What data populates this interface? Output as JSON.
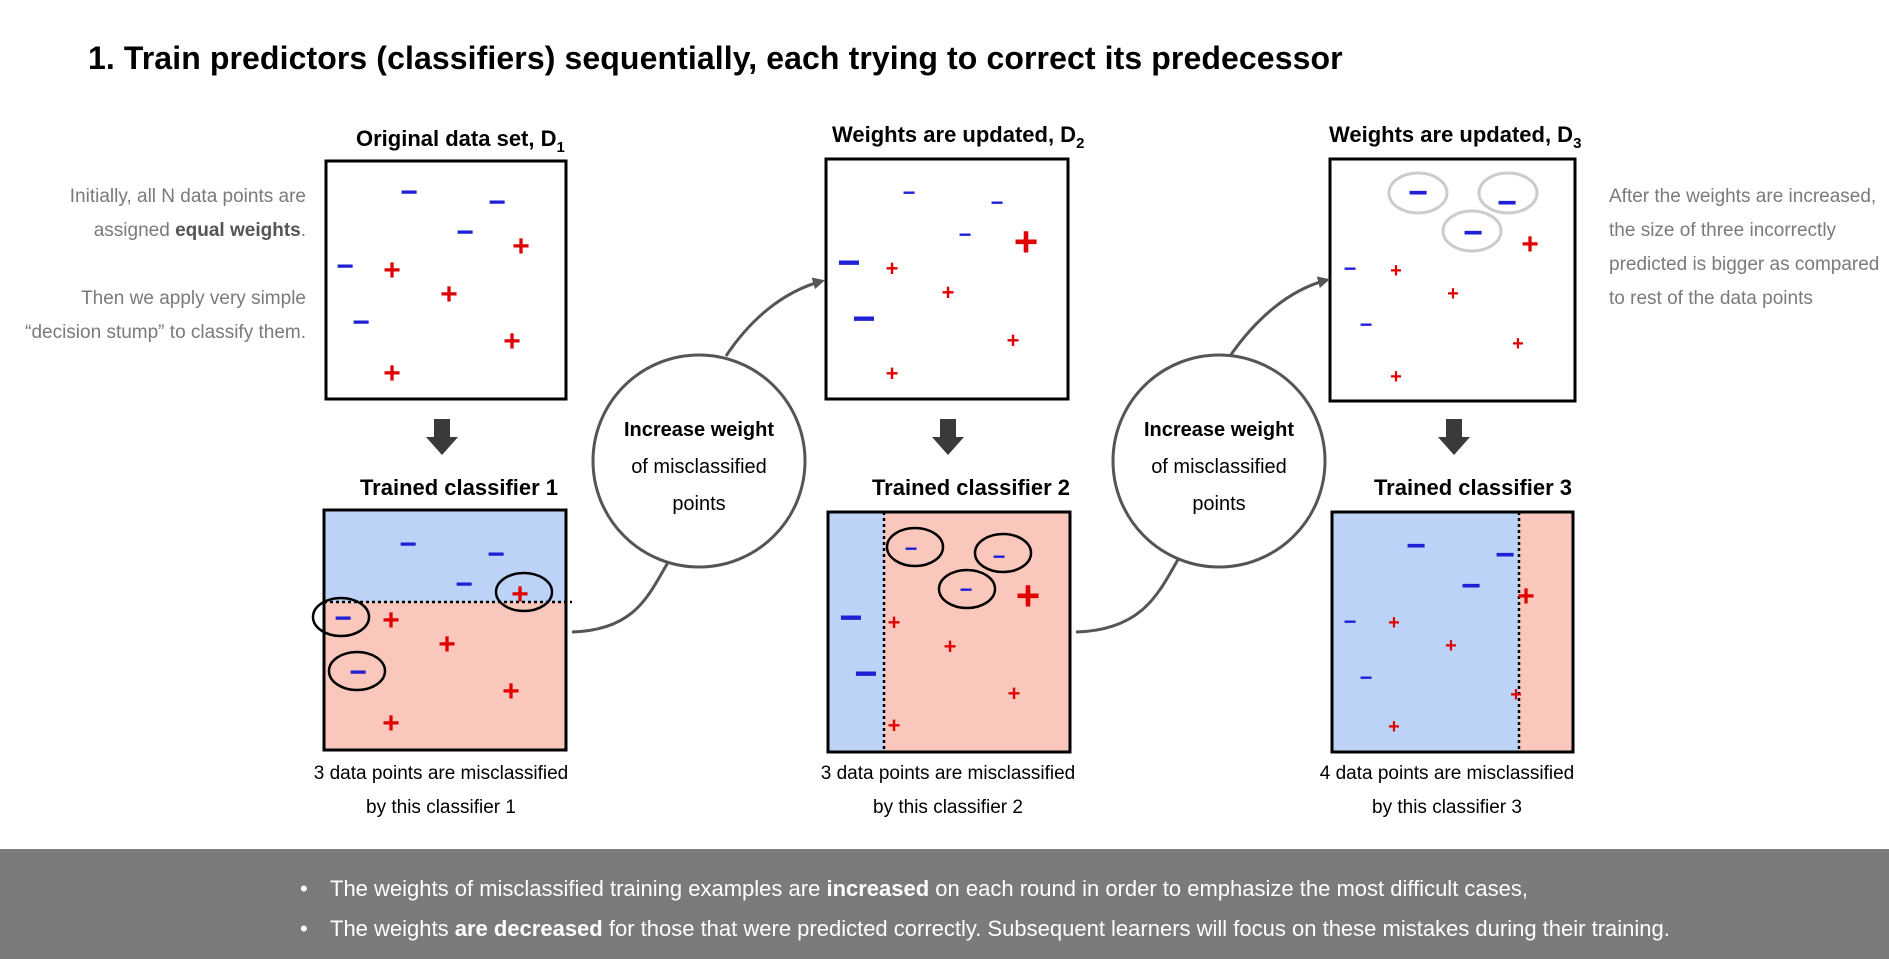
{
  "title": "1. Train predictors (classifiers)  sequentially, each trying to correct its predecessor",
  "left_note": {
    "p1_a": "Initially, all N data points are assigned ",
    "p1_bold": "equal weights",
    "p1_b": ".",
    "p2": "Then we apply very simple “decision stump” to classify them."
  },
  "right_note": "After the weights are increased, the size of three incorrectly predicted is bigger as compared to rest of the data points",
  "datasets": [
    {
      "label": "Original data set, D",
      "sub": "1"
    },
    {
      "label": "Weights are updated, D",
      "sub": "2"
    },
    {
      "label": "Weights are updated, D",
      "sub": "3"
    }
  ],
  "classifiers": [
    {
      "label": "Trained classifier 1",
      "caption_1": "3 data points are misclassified",
      "caption_2": "by this classifier 1"
    },
    {
      "label": "Trained classifier 2",
      "caption_1": "3 data points are misclassified",
      "caption_2": "by this classifier 2"
    },
    {
      "label": "Trained classifier 3",
      "caption_1": "4 data points are misclassified",
      "caption_2": "by this classifier 3"
    }
  ],
  "bubbles": [
    {
      "bold": "Increase weight",
      "line2": "of misclassified",
      "line3": "points"
    },
    {
      "bold": "Increase weight",
      "line2": "of misclassified",
      "line3": "points"
    }
  ],
  "symbols": {
    "minus": "−",
    "plus": "+"
  },
  "footer": {
    "bullet": "•",
    "b1_a": "The weights of misclassified training examples are ",
    "b1_bold": "increased",
    "b1_b": " on each round in order to emphasize the most difficult cases,",
    "b2_a": "The weights ",
    "b2_bold": "are decreased",
    "b2_b": " for those that were predicted correctly. Subsequent learners will focus on these mistakes during their training."
  },
  "colors": {
    "minus": "#1f1fd6",
    "plus": "#e00000",
    "region_blue": "#bcd3f7",
    "region_red": "#f9c7bb",
    "footer_bg": "#7b7b7b",
    "note_gray": "#7a7a7a"
  }
}
